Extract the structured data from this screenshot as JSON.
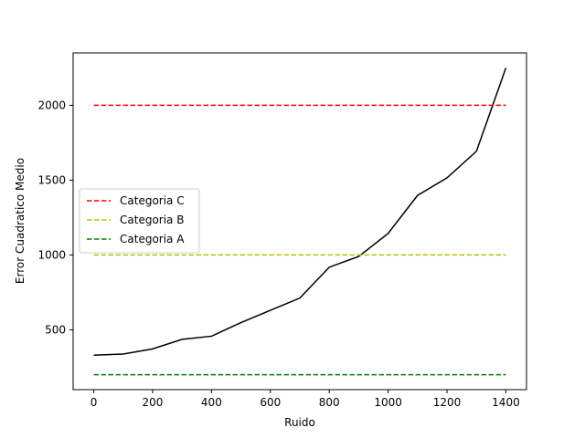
{
  "chart_data": {
    "type": "line",
    "title": "",
    "xlabel": "Ruido",
    "ylabel": "Error Cuadratico Medio",
    "xlim": [
      -70,
      1470
    ],
    "ylim": [
      100,
      2350
    ],
    "xticks": [
      0,
      200,
      400,
      600,
      800,
      1000,
      1200,
      1400
    ],
    "yticks": [
      500,
      1000,
      1500,
      2000
    ],
    "grid": false,
    "legend_position": "center-left",
    "series": [
      {
        "name": "",
        "color": "#000000",
        "style": "solid",
        "x": [
          0,
          100,
          200,
          300,
          400,
          500,
          600,
          700,
          800,
          900,
          1000,
          1100,
          1200,
          1300,
          1400
        ],
        "y": [
          330,
          338,
          372,
          436,
          457,
          548,
          630,
          712,
          918,
          990,
          1144,
          1398,
          1515,
          1693,
          2250
        ]
      },
      {
        "name": "Categoria C",
        "color": "#ff0000",
        "style": "dashed",
        "x": [
          0,
          1400
        ],
        "y": [
          2000,
          2000
        ]
      },
      {
        "name": "Categoria B",
        "color": "#bfbf00",
        "style": "dashed",
        "x": [
          0,
          1400
        ],
        "y": [
          1000,
          1000
        ]
      },
      {
        "name": "Categoria A",
        "color": "#008000",
        "style": "dashed",
        "x": [
          0,
          1400
        ],
        "y": [
          200,
          200
        ]
      }
    ],
    "legend": [
      "Categoria C",
      "Categoria B",
      "Categoria A"
    ]
  }
}
